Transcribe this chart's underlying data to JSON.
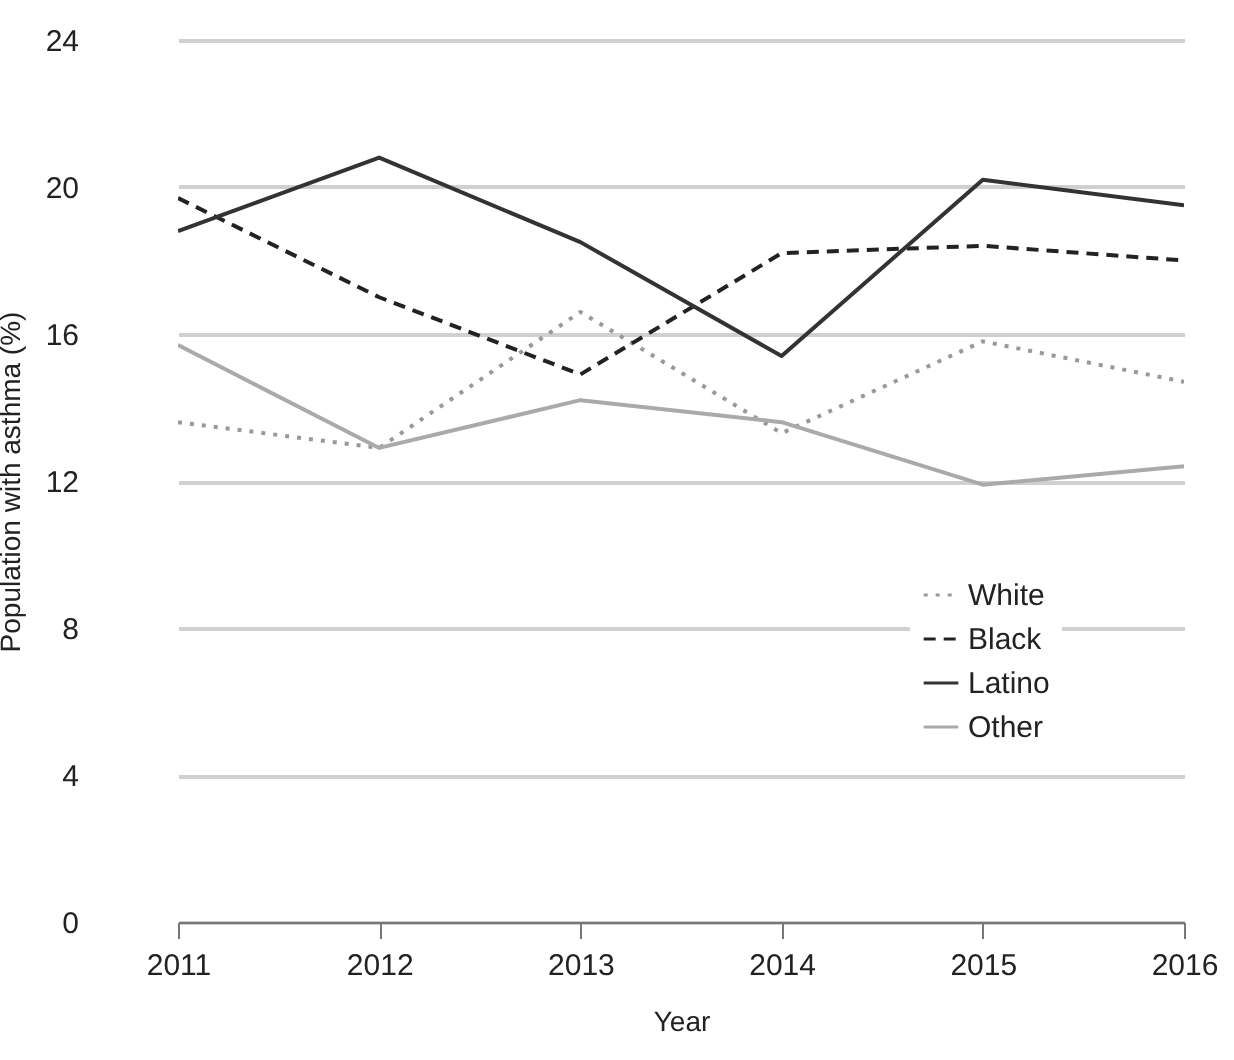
{
  "chart_data": {
    "type": "line",
    "xlabel": "Year",
    "ylabel": "Population with asthma (%)",
    "x": [
      2011,
      2012,
      2013,
      2014,
      2015,
      2016
    ],
    "series": [
      {
        "name": "White",
        "color": "#999999",
        "line_style": "dotted",
        "values": [
          13.6,
          12.9,
          16.6,
          13.3,
          15.8,
          14.7
        ]
      },
      {
        "name": "Black",
        "color": "#222222",
        "line_style": "dashed",
        "values": [
          19.7,
          17.0,
          14.9,
          18.2,
          18.4,
          18.0
        ]
      },
      {
        "name": "Latino",
        "color": "#333333",
        "line_style": "solid",
        "values": [
          18.8,
          20.8,
          18.5,
          15.4,
          20.2,
          19.5
        ]
      },
      {
        "name": "Other",
        "color": "#aaaaaa",
        "line_style": "solid",
        "values": [
          15.7,
          12.9,
          14.2,
          13.6,
          11.9,
          12.4
        ]
      }
    ],
    "xlim": [
      2011,
      2016
    ],
    "xticks": [
      2011,
      2012,
      2013,
      2014,
      2015,
      2016
    ],
    "ylim": [
      0,
      24
    ],
    "yticks": [
      0,
      4,
      8,
      12,
      16,
      20,
      24
    ],
    "grid": "y",
    "legend": "bottom right",
    "marker": "none"
  }
}
